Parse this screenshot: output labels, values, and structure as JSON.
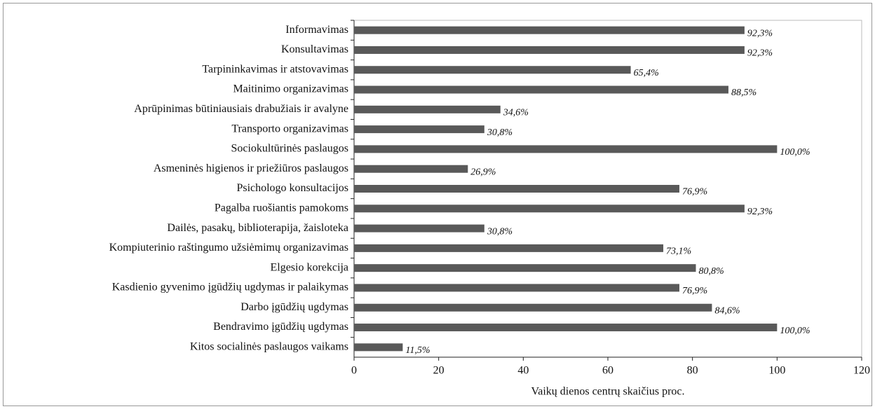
{
  "chart_data": {
    "type": "barh",
    "categories": [
      "Informavimas",
      "Konsultavimas",
      "Tarpininkavimas ir atstovavimas",
      "Maitinimo organizavimas",
      "Aprūpinimas būtiniausiais drabužiais ir avalyne",
      "Transporto organizavimas",
      "Sociokultūrinės paslaugos",
      "Asmeninės higienos ir priežiūros paslaugos",
      "Psichologo konsultacijos",
      "Pagalba ruošiantis pamokoms",
      "Dailės, pasakų, biblioterapija, žaisloteka",
      "Kompiuterinio raštingumo užsiėmimų organizavimas",
      "Elgesio korekcija",
      "Kasdienio gyvenimo įgūdžių ugdymas ir palaikymas",
      "Darbo įgūdžių ugdymas",
      "Bendravimo įgūdžių ugdymas",
      "Kitos socialinės paslaugos vaikams"
    ],
    "values": [
      92.3,
      92.3,
      65.4,
      88.5,
      34.6,
      30.8,
      100.0,
      26.9,
      76.9,
      92.3,
      30.8,
      73.1,
      80.8,
      76.9,
      84.6,
      100.0,
      11.5
    ],
    "value_labels": [
      "92,3%",
      "92,3%",
      "65,4%",
      "88,5%",
      "34,6%",
      "30,8%",
      "100,0%",
      "26,9%",
      "76,9%",
      "92,3%",
      "30,8%",
      "73,1%",
      "80,8%",
      "76,9%",
      "84,6%",
      "100,0%",
      "11,5%"
    ],
    "color": "#595959",
    "xlim": [
      0,
      120
    ],
    "xticks": [
      0,
      20,
      40,
      60,
      80,
      100,
      120
    ],
    "xlabel": "Vaikų dienos centrų skaičius proc."
  }
}
